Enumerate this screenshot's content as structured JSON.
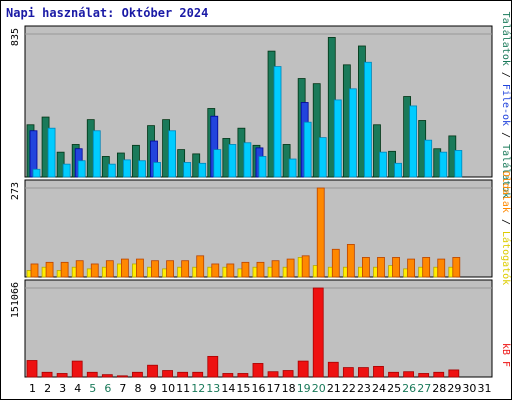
{
  "title": "Napi használat: Október 2024",
  "colors": {
    "panel_bg": "#c0c0c0",
    "visits": "#1a7a5a",
    "files": "#2244dd",
    "hits": "#00ccff",
    "sites": "#ffee00",
    "pages": "#ff8800",
    "kbytes": "#ee1111",
    "weekday_text": "#000000",
    "weekend_text": "#1a7a5a",
    "legend_visits": "#1a7a5a",
    "legend_files": "#2244dd",
    "legend_hits": "#00aacc",
    "legend_sites": "#ddcc00",
    "legend_pages": "#ff8800",
    "legend_kbytes": "#ee1111"
  },
  "chart_data": [
    {
      "type": "bar",
      "panel": "top",
      "ymax": 835,
      "ylabel_right_parts": [
        "Találatok",
        "/",
        "File-ok",
        "/",
        "Találatok"
      ],
      "categories": [
        "1",
        "2",
        "3",
        "4",
        "5",
        "6",
        "7",
        "8",
        "9",
        "10",
        "11",
        "12",
        "13",
        "14",
        "15",
        "16",
        "17",
        "18",
        "19",
        "20",
        "21",
        "22",
        "23",
        "24",
        "25",
        "26",
        "27",
        "28",
        "29",
        "30",
        "31"
      ],
      "series": [
        {
          "name": "Találatok",
          "key": "visits",
          "values": [
            305,
            350,
            145,
            190,
            335,
            120,
            140,
            185,
            300,
            335,
            160,
            135,
            400,
            225,
            285,
            185,
            735,
            190,
            575,
            545,
            815,
            655,
            765,
            305,
            150,
            470,
            330,
            165,
            240,
            0,
            0
          ]
        },
        {
          "name": "File-ok",
          "key": "files",
          "values": [
            270,
            0,
            0,
            165,
            0,
            0,
            0,
            0,
            210,
            0,
            0,
            0,
            355,
            0,
            0,
            170,
            0,
            0,
            435,
            0,
            0,
            0,
            0,
            0,
            0,
            0,
            0,
            0,
            0,
            0,
            0
          ]
        },
        {
          "name": "Találatok",
          "key": "hits",
          "values": [
            45,
            285,
            75,
            95,
            270,
            75,
            100,
            95,
            85,
            270,
            85,
            80,
            160,
            190,
            200,
            120,
            645,
            105,
            320,
            230,
            450,
            515,
            670,
            145,
            80,
            415,
            215,
            145,
            155,
            0,
            0
          ]
        }
      ]
    },
    {
      "type": "bar",
      "panel": "middle",
      "ymax": 273,
      "ylabel_right_parts": [
        "Oldalak",
        "/",
        "Látogatók"
      ],
      "categories": [
        "1",
        "2",
        "3",
        "4",
        "5",
        "6",
        "7",
        "8",
        "9",
        "10",
        "11",
        "12",
        "13",
        "14",
        "15",
        "16",
        "17",
        "18",
        "19",
        "20",
        "21",
        "22",
        "23",
        "24",
        "25",
        "26",
        "27",
        "28",
        "29",
        "30",
        "31"
      ],
      "series": [
        {
          "name": "Látogatók",
          "key": "sites",
          "values": [
            20,
            30,
            20,
            30,
            25,
            30,
            40,
            40,
            30,
            25,
            30,
            30,
            30,
            30,
            25,
            30,
            30,
            30,
            60,
            35,
            30,
            30,
            30,
            30,
            35,
            25,
            30,
            30,
            30,
            0,
            0
          ]
        },
        {
          "name": "Oldalak",
          "key": "pages",
          "values": [
            40,
            45,
            45,
            50,
            40,
            50,
            55,
            55,
            50,
            50,
            50,
            65,
            40,
            40,
            45,
            45,
            50,
            55,
            65,
            273,
            85,
            100,
            60,
            60,
            60,
            55,
            60,
            55,
            60,
            0,
            0
          ]
        }
      ]
    },
    {
      "type": "bar",
      "panel": "bottom",
      "ymax": 151066,
      "ylabel_right_parts": [
        "kB F"
      ],
      "categories": [
        "1",
        "2",
        "3",
        "4",
        "5",
        "6",
        "7",
        "8",
        "9",
        "10",
        "11",
        "12",
        "13",
        "14",
        "15",
        "16",
        "17",
        "18",
        "19",
        "20",
        "21",
        "22",
        "23",
        "24",
        "25",
        "26",
        "27",
        "28",
        "29",
        "30",
        "31"
      ],
      "series": [
        {
          "name": "kB F",
          "key": "kbytes",
          "values": [
            28000,
            8000,
            6000,
            27000,
            8000,
            4000,
            2000,
            8000,
            20000,
            11000,
            8000,
            8000,
            35000,
            6000,
            6000,
            23000,
            9000,
            11000,
            27000,
            151066,
            25000,
            16000,
            16000,
            18000,
            8000,
            9000,
            6000,
            8000,
            12000,
            0,
            0
          ]
        }
      ]
    }
  ],
  "weekend_days": [
    5,
    6,
    12,
    13,
    19,
    20,
    26,
    27
  ]
}
